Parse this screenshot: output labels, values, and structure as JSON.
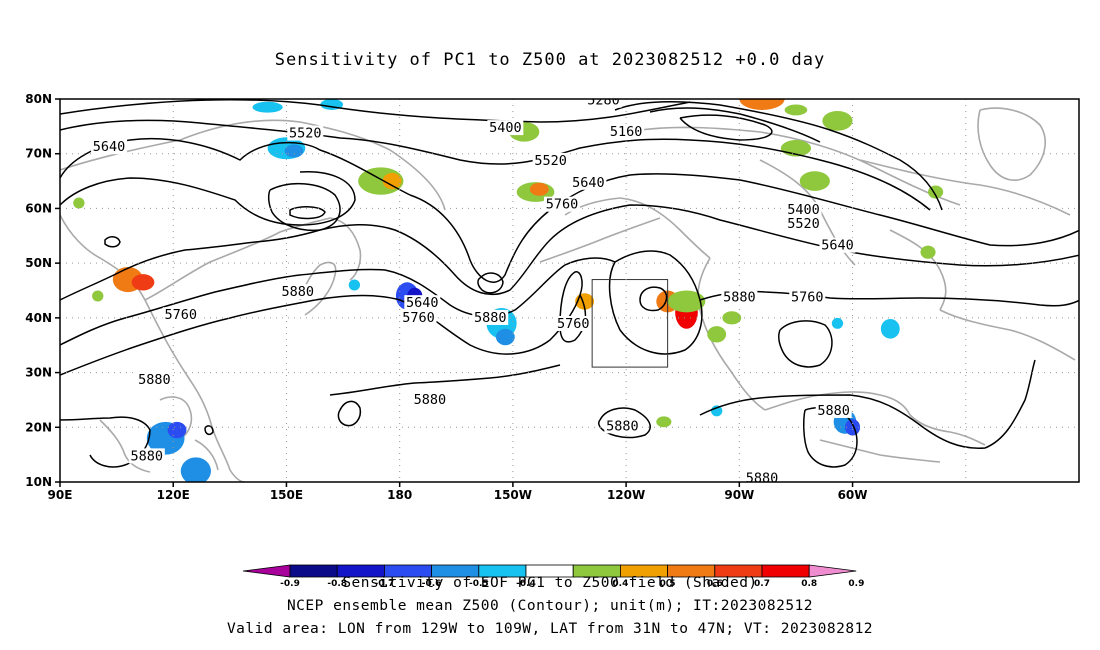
{
  "title": "Sensitivity of PC1 to Z500 at 2023082512 +0.0 day",
  "lat_labels": [
    "80N",
    "70N",
    "60N",
    "50N",
    "40N",
    "30N",
    "20N",
    "10N"
  ],
  "lon_labels": [
    "90E",
    "120E",
    "150E",
    "180",
    "150W",
    "120W",
    "90W",
    "60W"
  ],
  "contour_labels": [
    {
      "text": "5640",
      "lon": 103,
      "lat": 71
    },
    {
      "text": "5520",
      "lon": 155,
      "lat": 73.5
    },
    {
      "text": "5400",
      "lon": -152,
      "lat": 74.5
    },
    {
      "text": "5280",
      "lon": -126,
      "lat": 79.5
    },
    {
      "text": "5160",
      "lon": -120,
      "lat": 73.8
    },
    {
      "text": "5520",
      "lon": -140,
      "lat": 68.5
    },
    {
      "text": "5640",
      "lon": -130,
      "lat": 64.5
    },
    {
      "text": "5760",
      "lon": -137,
      "lat": 60.5
    },
    {
      "text": "5400",
      "lon": -73,
      "lat": 59.5
    },
    {
      "text": "5520",
      "lon": -73,
      "lat": 57
    },
    {
      "text": "5640",
      "lon": -64,
      "lat": 53
    },
    {
      "text": "5760",
      "lon": -72,
      "lat": 43.5
    },
    {
      "text": "5880",
      "lon": -90,
      "lat": 43.5
    },
    {
      "text": "5880",
      "lon": 153,
      "lat": 44.5
    },
    {
      "text": "5760",
      "lon": 122,
      "lat": 40.3
    },
    {
      "text": "5640",
      "lon": -174,
      "lat": 42.5
    },
    {
      "text": "5760",
      "lon": -175,
      "lat": 39.8
    },
    {
      "text": "5880",
      "lon": -156,
      "lat": 39.8
    },
    {
      "text": "5760",
      "lon": -134,
      "lat": 38.7
    },
    {
      "text": "5880",
      "lon": 115,
      "lat": 28.5
    },
    {
      "text": "5880",
      "lon": -172,
      "lat": 24.8
    },
    {
      "text": "5880",
      "lon": -121,
      "lat": 20.0
    },
    {
      "text": "5880",
      "lon": -65,
      "lat": 22.8
    },
    {
      "text": "5880",
      "lon": 113,
      "lat": 14.5
    },
    {
      "text": "5880",
      "lon": -84,
      "lat": 10.5
    }
  ],
  "valid_box": {
    "lon_west": -129,
    "lon_east": -109,
    "lat_south": 31,
    "lat_north": 47
  },
  "colorbar": {
    "labels": [
      "-0.9",
      "-0.8",
      "-0.7",
      "-0.6",
      "-0.5",
      "-0.4",
      "0.4",
      "0.5",
      "0.6",
      "0.7",
      "0.8",
      "0.9"
    ],
    "colors": [
      "#a8009a",
      "#0b0b8a",
      "#1414c8",
      "#2a4cf0",
      "#1f8fe6",
      "#18c2f0",
      "#ffffff",
      "#8fc83c",
      "#f0a000",
      "#f07a14",
      "#f03c14",
      "#f00000",
      "#f08cd0"
    ]
  },
  "captions": [
    "Sensitivity of EOF PC1 to Z500 field (Shaded)",
    "NCEP ensemble mean Z500 (Contour); unit(m); IT:2023082512",
    "Valid area: LON from 129W to 109W, LAT from 31N to 47N; VT: 2023082812"
  ]
}
